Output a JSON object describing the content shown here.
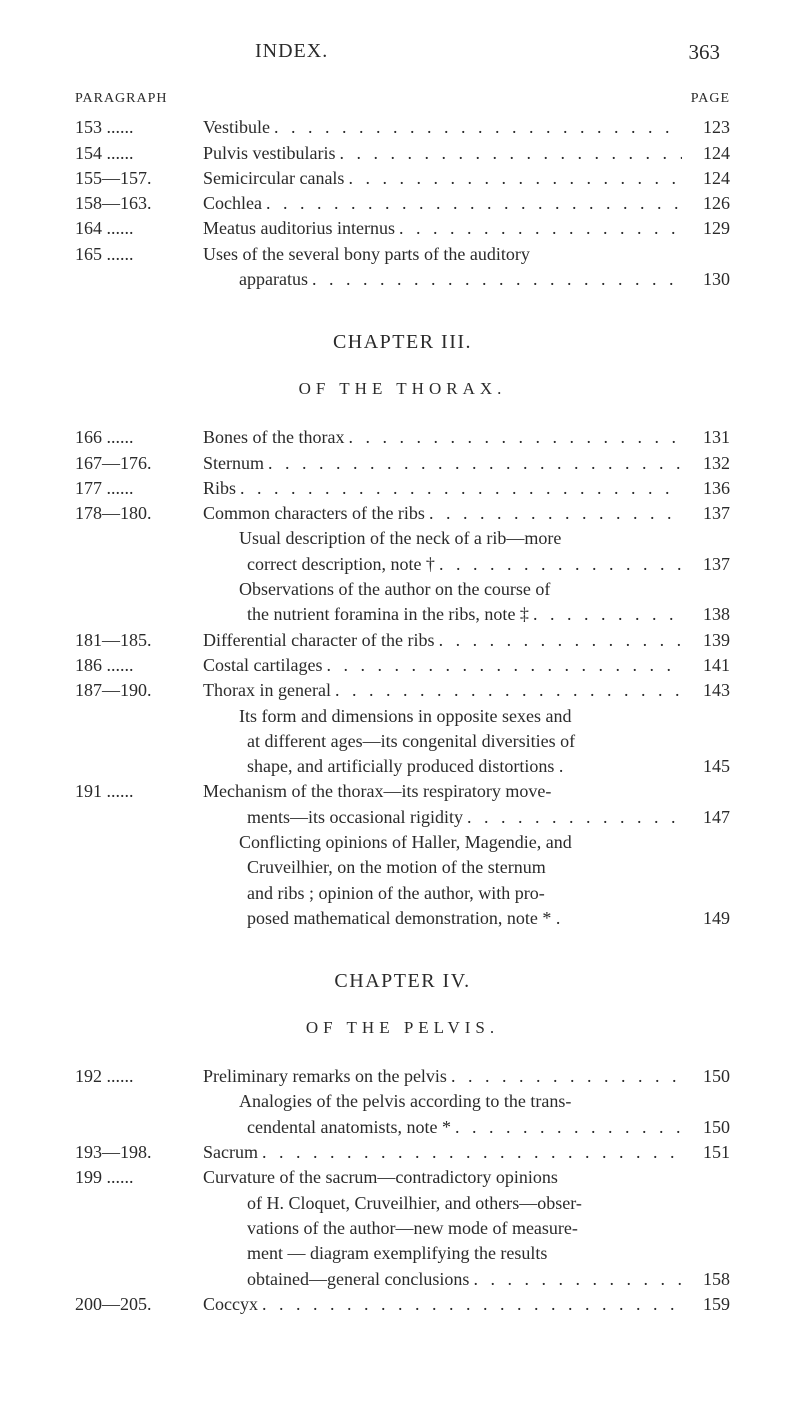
{
  "header": {
    "title": "INDEX.",
    "page_number": "363"
  },
  "col": {
    "para": "PARAGRAPH",
    "page": "PAGE"
  },
  "dots": ". . . . . . . . . . . . . . . . . . . . . . . . . . . . . .",
  "sec1": {
    "e0": {
      "p": "153  ......",
      "t": "Vestibule",
      "pg": "123"
    },
    "e1": {
      "p": "154  ......",
      "t": "Pulvis vestibularis",
      "pg": "124"
    },
    "e2": {
      "p": "155—157.",
      "t": "Semicircular canals",
      "pg": "124"
    },
    "e3": {
      "p": "158—163.",
      "t": "Cochlea",
      "pg": "126"
    },
    "e4": {
      "p": "164  ......",
      "t": "Meatus auditorius internus",
      "pg": "129"
    },
    "e5": {
      "p": "165  ......",
      "t": "Uses of the several bony parts of the auditory",
      "pg": ""
    },
    "e5b": {
      "t": "apparatus",
      "pg": "130"
    }
  },
  "chapter3": {
    "title": "CHAPTER III.",
    "sub": "OF THE THORAX."
  },
  "sec2": {
    "e0": {
      "p": "166  ......",
      "t": "Bones of the thorax",
      "pg": "131"
    },
    "e1": {
      "p": "167—176.",
      "t": "Sternum",
      "pg": "132"
    },
    "e2": {
      "p": "177  ......",
      "t": "Ribs",
      "pg": "136"
    },
    "e3": {
      "p": "178—180.",
      "t": "Common characters of the ribs",
      "pg": "137"
    },
    "e3a": {
      "t": "Usual description of the neck of a rib—more",
      "pg": ""
    },
    "e3b": {
      "t": "correct description, note †",
      "pg": "137"
    },
    "e3c": {
      "t": "Observations of the author on the course of",
      "pg": ""
    },
    "e3d": {
      "t": "the nutrient foramina in the ribs, note ‡",
      "pg": "138"
    },
    "e4": {
      "p": "181—185.",
      "t": "Differential character of the ribs",
      "pg": "139"
    },
    "e5": {
      "p": "186  ......",
      "t": "Costal cartilages",
      "pg": "141"
    },
    "e6": {
      "p": "187—190.",
      "t": "Thorax in general",
      "pg": "143"
    },
    "e6a": {
      "t": "Its form and dimensions in opposite sexes and",
      "pg": ""
    },
    "e6b": {
      "t": "at different ages—its congenital diversities of",
      "pg": ""
    },
    "e6c": {
      "t": "shape, and artificially produced distortions .",
      "pg": "145"
    },
    "e7": {
      "p": "191  ......",
      "t": "Mechanism of the thorax—its respiratory move-",
      "pg": ""
    },
    "e7a": {
      "t": "ments—its occasional rigidity",
      "pg": "147"
    },
    "e7b": {
      "t": "Conflicting opinions of Haller, Magendie, and",
      "pg": ""
    },
    "e7c": {
      "t": "Cruveilhier, on the motion of the sternum",
      "pg": ""
    },
    "e7d": {
      "t": "and ribs ; opinion of the author, with pro-",
      "pg": ""
    },
    "e7e": {
      "t": "posed mathematical demonstration, note * .",
      "pg": "149"
    }
  },
  "chapter4": {
    "title": "CHAPTER IV.",
    "sub": "OF THE PELVIS."
  },
  "sec3": {
    "e0": {
      "p": "192  ......",
      "t": "Preliminary remarks on the pelvis",
      "pg": "150"
    },
    "e0a": {
      "t": "Analogies of the pelvis according to the trans-",
      "pg": ""
    },
    "e0b": {
      "t": "cendental anatomists, note *",
      "pg": "150"
    },
    "e1": {
      "p": "193—198.",
      "t": "Sacrum",
      "pg": "151"
    },
    "e2": {
      "p": "199  ......",
      "t": "Curvature of the sacrum—contradictory opinions",
      "pg": ""
    },
    "e2a": {
      "t": "of H. Cloquet, Cruveilhier, and others—obser-",
      "pg": ""
    },
    "e2b": {
      "t": "vations of the author—new mode of measure-",
      "pg": ""
    },
    "e2c": {
      "t": "ment — diagram exemplifying the results",
      "pg": ""
    },
    "e2d": {
      "t": "obtained—general conclusions",
      "pg": "158"
    },
    "e3": {
      "p": "200—205.",
      "t": "Coccyx",
      "pg": "159"
    }
  }
}
